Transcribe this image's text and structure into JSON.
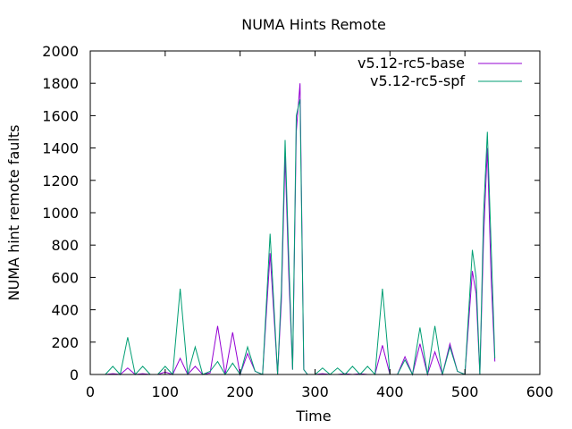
{
  "chart_data": {
    "type": "line",
    "title": "NUMA Hints Remote",
    "xlabel": "Time",
    "ylabel": "NUMA hint remote faults",
    "xlim": [
      0,
      600
    ],
    "ylim": [
      0,
      2000
    ],
    "x_ticks": [
      "0",
      "100",
      "200",
      "300",
      "400",
      "500",
      "600"
    ],
    "y_ticks": [
      "0",
      "200",
      "400",
      "600",
      "800",
      "1000",
      "1200",
      "1400",
      "1600",
      "1800",
      "2000"
    ],
    "grid": false,
    "legend_position": "top-right",
    "series": [
      {
        "name": "v5.12-rc5-base",
        "color": "#9400d3",
        "x": [
          20,
          30,
          40,
          50,
          60,
          70,
          80,
          90,
          100,
          110,
          120,
          130,
          140,
          150,
          160,
          170,
          180,
          190,
          200,
          210,
          220,
          230,
          240,
          250,
          255,
          260,
          265,
          270,
          275,
          280,
          285,
          290,
          300,
          310,
          320,
          330,
          340,
          350,
          360,
          370,
          380,
          390,
          400,
          410,
          420,
          430,
          440,
          450,
          460,
          470,
          480,
          490,
          500,
          510,
          515,
          520,
          525,
          530,
          535,
          540
        ],
        "y": [
          0,
          5,
          0,
          40,
          0,
          5,
          0,
          0,
          15,
          0,
          100,
          0,
          50,
          0,
          10,
          300,
          0,
          260,
          0,
          130,
          20,
          0,
          750,
          0,
          450,
          1350,
          600,
          30,
          1500,
          1800,
          30,
          0,
          0,
          5,
          0,
          0,
          5,
          0,
          5,
          0,
          0,
          180,
          0,
          0,
          110,
          0,
          190,
          0,
          140,
          0,
          190,
          20,
          0,
          640,
          500,
          0,
          850,
          1400,
          600,
          80
        ]
      },
      {
        "name": "v5.12-rc5-spf",
        "color": "#009e73",
        "x": [
          20,
          30,
          40,
          50,
          60,
          70,
          80,
          90,
          100,
          110,
          120,
          130,
          140,
          150,
          160,
          170,
          180,
          190,
          200,
          210,
          220,
          230,
          240,
          250,
          255,
          260,
          265,
          270,
          275,
          280,
          285,
          290,
          300,
          310,
          320,
          330,
          340,
          350,
          360,
          370,
          380,
          390,
          400,
          410,
          420,
          430,
          440,
          450,
          460,
          470,
          480,
          490,
          500,
          510,
          515,
          520,
          525,
          530,
          535,
          540
        ],
        "y": [
          0,
          50,
          0,
          230,
          0,
          50,
          0,
          0,
          50,
          0,
          530,
          0,
          170,
          0,
          20,
          80,
          0,
          70,
          0,
          170,
          20,
          0,
          870,
          0,
          520,
          1450,
          700,
          30,
          1600,
          1700,
          30,
          0,
          0,
          40,
          0,
          40,
          0,
          50,
          0,
          50,
          0,
          530,
          0,
          0,
          90,
          0,
          290,
          0,
          300,
          0,
          170,
          20,
          0,
          770,
          600,
          0,
          1000,
          1500,
          800,
          100
        ]
      }
    ]
  }
}
